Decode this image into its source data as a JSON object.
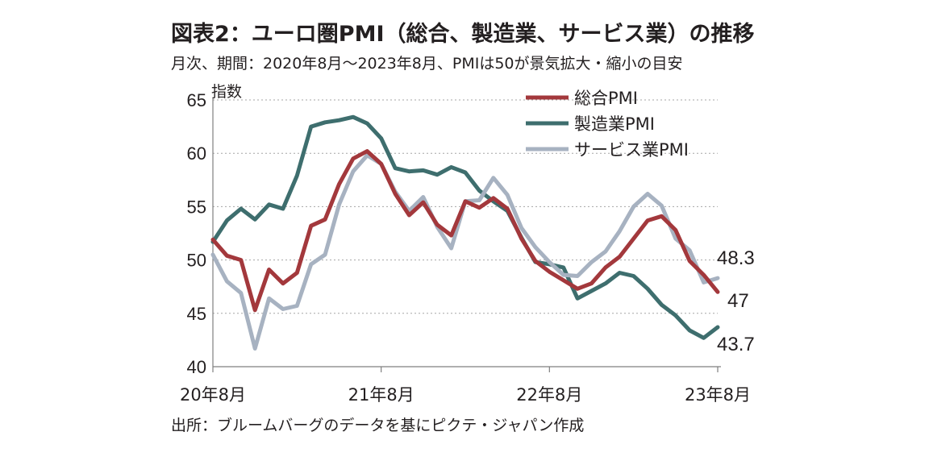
{
  "title": "図表2：ユーロ圏PMI（総合、製造業、サービス業）の推移",
  "subtitle": "月次、期間：2020年8月～2023年8月、PMIは50が景気拡大・縮小の目安",
  "source": "出所：ブルームバーグのデータを基にピクテ・ジャパン作成",
  "chart_data": {
    "type": "line",
    "ylabel": "指数",
    "ylim": [
      40,
      65
    ],
    "yticks": [
      40,
      45,
      50,
      55,
      60,
      65
    ],
    "xlim": [
      0,
      36
    ],
    "xticks": [
      {
        "label": "20年8月",
        "index": 0
      },
      {
        "label": "21年8月",
        "index": 12
      },
      {
        "label": "22年8月",
        "index": 24
      },
      {
        "label": "23年8月",
        "index": 36
      }
    ],
    "grid": "horizontal dashed",
    "legend": "top-right",
    "series": [
      {
        "name": "総合PMI",
        "color": "#a3383c",
        "values": [
          51.9,
          50.4,
          50.0,
          45.3,
          49.1,
          47.8,
          48.8,
          53.2,
          53.8,
          57.1,
          59.5,
          60.2,
          59.0,
          56.2,
          54.2,
          55.4,
          53.3,
          52.3,
          55.5,
          54.9,
          55.8,
          54.8,
          52.0,
          49.9,
          48.9,
          48.1,
          47.3,
          47.8,
          49.3,
          50.3,
          52.0,
          53.7,
          54.1,
          52.8,
          49.9,
          48.6,
          47.0
        ],
        "end_label": "47"
      },
      {
        "name": "製造業PMI",
        "color": "#3e6e6e",
        "values": [
          51.7,
          53.7,
          54.8,
          53.8,
          55.2,
          54.8,
          57.9,
          62.5,
          62.9,
          63.1,
          63.4,
          62.8,
          61.4,
          58.6,
          58.3,
          58.4,
          58.0,
          58.7,
          58.2,
          56.5,
          55.5,
          54.6,
          52.1,
          49.8,
          49.6,
          49.3,
          46.4,
          47.1,
          47.8,
          48.8,
          48.5,
          47.3,
          45.8,
          44.8,
          43.4,
          42.7,
          43.7
        ],
        "end_label": "43.7"
      },
      {
        "name": "サービス業PMI",
        "color": "#a7b2c1",
        "values": [
          50.5,
          48.0,
          46.9,
          41.7,
          46.4,
          45.4,
          45.7,
          49.6,
          50.5,
          55.2,
          58.3,
          59.8,
          59.0,
          56.4,
          54.6,
          55.9,
          53.1,
          51.1,
          55.5,
          55.6,
          57.7,
          56.1,
          53.0,
          51.2,
          49.8,
          48.6,
          48.5,
          49.8,
          50.8,
          52.7,
          55.0,
          56.2,
          55.1,
          52.0,
          50.9,
          47.9,
          48.3
        ],
        "end_label": "48.3"
      }
    ]
  }
}
